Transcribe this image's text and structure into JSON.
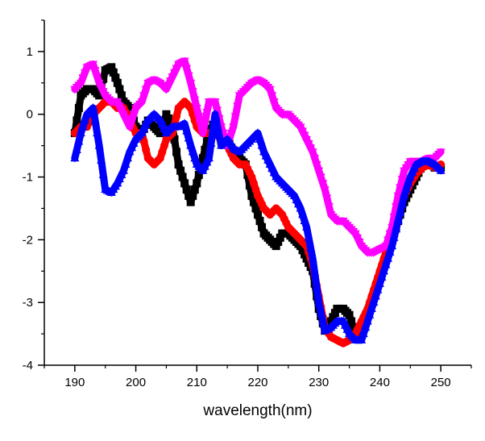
{
  "chart_data": {
    "type": "line",
    "title": "",
    "xlabel": "wavelength(nm)",
    "ylabel": "",
    "xlim": [
      185,
      255
    ],
    "ylim": [
      -4,
      1.5
    ],
    "x_ticks": [
      190,
      200,
      210,
      220,
      230,
      240,
      250
    ],
    "y_ticks": [
      1,
      0,
      -1,
      -2,
      -3,
      -4
    ],
    "x_tick_labels": [
      "190",
      "200",
      "210",
      "220",
      "230",
      "240",
      "250"
    ],
    "y_tick_labels": [
      "1",
      "0",
      "-1",
      "-2",
      "-3",
      "-4"
    ],
    "grid": false,
    "legend": "none",
    "series": [
      {
        "color": "#000000",
        "marker": "square",
        "x": [
          190,
          191,
          192,
          193,
          194,
          195,
          196,
          197,
          198,
          199,
          200,
          201,
          202,
          203,
          204,
          205,
          206,
          207,
          208,
          209,
          210,
          211,
          212,
          213,
          214,
          215,
          216,
          217,
          218,
          219,
          220,
          221,
          222,
          223,
          224,
          225,
          226,
          227,
          228,
          229,
          230,
          231,
          232,
          233,
          234,
          235,
          236,
          237,
          238,
          239,
          240,
          241,
          242,
          243,
          244,
          245,
          246,
          247,
          248,
          249,
          250
        ],
        "y": [
          -0.3,
          0.3,
          0.4,
          0.4,
          0.3,
          0.7,
          0.75,
          0.5,
          0.2,
          0.1,
          -0.2,
          -0.3,
          -0.1,
          -0.2,
          -0.3,
          0.0,
          -0.2,
          -0.8,
          -1.1,
          -1.4,
          -1.1,
          -0.7,
          -0.3,
          -0.1,
          -0.4,
          -0.4,
          -0.6,
          -0.7,
          -0.8,
          -1.3,
          -1.6,
          -1.9,
          -2.0,
          -2.1,
          -1.9,
          -1.9,
          -2.0,
          -2.1,
          -2.3,
          -2.5,
          -3.1,
          -3.45,
          -3.3,
          -3.1,
          -3.1,
          -3.2,
          -3.5,
          -3.45,
          -3.2,
          -2.9,
          -2.6,
          -2.3,
          -2.0,
          -1.7,
          -1.4,
          -1.2,
          -1.0,
          -0.8,
          -0.75,
          -0.85,
          -0.85
        ]
      },
      {
        "color": "#ff0000",
        "marker": "circle",
        "x": [
          190,
          191,
          192,
          193,
          194,
          195,
          196,
          197,
          198,
          199,
          200,
          201,
          202,
          203,
          204,
          205,
          206,
          207,
          208,
          209,
          210,
          211,
          212,
          213,
          214,
          215,
          216,
          217,
          218,
          219,
          220,
          221,
          222,
          223,
          224,
          225,
          226,
          227,
          228,
          229,
          230,
          231,
          232,
          233,
          234,
          235,
          236,
          237,
          238,
          239,
          240,
          241,
          242,
          243,
          244,
          245,
          246,
          247,
          248,
          249,
          250
        ],
        "y": [
          -0.3,
          -0.2,
          -0.2,
          0.0,
          0.1,
          0.2,
          0.2,
          0.1,
          0.1,
          -0.1,
          -0.3,
          -0.3,
          -0.7,
          -0.8,
          -0.7,
          -0.4,
          -0.3,
          0.1,
          0.2,
          0.1,
          -0.2,
          -0.3,
          -0.3,
          -0.3,
          -0.4,
          -0.5,
          -0.7,
          -0.8,
          -0.8,
          -1.0,
          -1.3,
          -1.5,
          -1.6,
          -1.5,
          -1.6,
          -1.8,
          -1.9,
          -2.0,
          -2.1,
          -2.4,
          -2.9,
          -3.4,
          -3.55,
          -3.6,
          -3.65,
          -3.6,
          -3.5,
          -3.3,
          -3.1,
          -2.8,
          -2.5,
          -2.2,
          -1.9,
          -1.6,
          -1.3,
          -1.1,
          -0.95,
          -0.85,
          -0.8,
          -0.85,
          -0.8
        ]
      },
      {
        "color": "#ff00ff",
        "marker": "down-triangle",
        "x": [
          190,
          191,
          192,
          193,
          194,
          195,
          196,
          197,
          198,
          199,
          200,
          201,
          202,
          203,
          204,
          205,
          206,
          207,
          208,
          209,
          210,
          211,
          212,
          213,
          214,
          215,
          216,
          217,
          218,
          219,
          220,
          221,
          222,
          223,
          224,
          225,
          226,
          227,
          228,
          229,
          230,
          231,
          232,
          233,
          234,
          235,
          236,
          237,
          238,
          239,
          240,
          241,
          242,
          243,
          244,
          245,
          246,
          247,
          248,
          249,
          250
        ],
        "y": [
          0.4,
          0.5,
          0.75,
          0.8,
          0.5,
          0.3,
          0.2,
          0.2,
          0.0,
          -0.2,
          0.1,
          0.2,
          0.5,
          0.55,
          0.5,
          0.4,
          0.6,
          0.8,
          0.85,
          0.5,
          0.1,
          -0.3,
          0.2,
          0.2,
          -0.2,
          -0.5,
          -0.2,
          0.3,
          0.4,
          0.5,
          0.55,
          0.5,
          0.4,
          0.1,
          0.0,
          0.0,
          -0.1,
          -0.2,
          -0.4,
          -0.6,
          -0.9,
          -1.2,
          -1.6,
          -1.7,
          -1.7,
          -1.8,
          -1.9,
          -2.1,
          -2.2,
          -2.2,
          -2.15,
          -2.1,
          -1.8,
          -1.3,
          -0.9,
          -0.75,
          -0.75,
          -0.75,
          -0.7,
          -0.7,
          -0.6
        ]
      },
      {
        "color": "#0000ff",
        "marker": "triangle",
        "x": [
          190,
          191,
          192,
          193,
          194,
          195,
          196,
          197,
          198,
          199,
          200,
          201,
          202,
          203,
          204,
          205,
          206,
          207,
          208,
          209,
          210,
          211,
          212,
          213,
          214,
          215,
          216,
          217,
          218,
          219,
          220,
          221,
          222,
          223,
          224,
          225,
          226,
          227,
          228,
          229,
          230,
          231,
          232,
          233,
          234,
          235,
          236,
          237,
          238,
          239,
          240,
          241,
          242,
          243,
          244,
          245,
          246,
          247,
          248,
          249,
          250
        ],
        "y": [
          -0.7,
          -0.3,
          0.0,
          0.1,
          -0.5,
          -1.2,
          -1.25,
          -1.1,
          -0.9,
          -0.6,
          -0.4,
          -0.3,
          -0.1,
          0.0,
          -0.1,
          -0.3,
          -0.2,
          -0.2,
          -0.15,
          -0.5,
          -0.8,
          -0.9,
          -0.7,
          0.0,
          -0.5,
          -0.4,
          -0.55,
          -0.6,
          -0.5,
          -0.4,
          -0.3,
          -0.6,
          -0.8,
          -1.0,
          -1.1,
          -1.2,
          -1.3,
          -1.5,
          -1.8,
          -2.3,
          -3.0,
          -3.45,
          -3.4,
          -3.3,
          -3.3,
          -3.5,
          -3.6,
          -3.6,
          -3.3,
          -3.0,
          -2.7,
          -2.4,
          -2.1,
          -1.7,
          -1.3,
          -1.0,
          -0.8,
          -0.75,
          -0.75,
          -0.8,
          -0.9
        ]
      }
    ]
  }
}
